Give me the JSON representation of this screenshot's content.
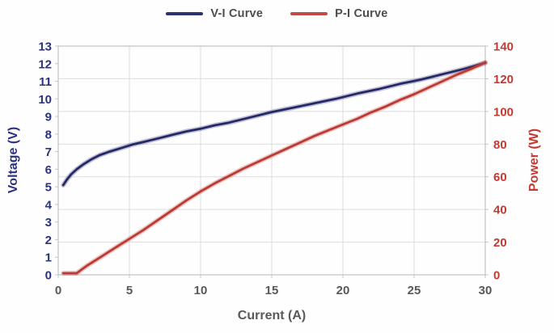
{
  "legend": {
    "items": [
      {
        "label": "V-I Curve",
        "color": "#2b3270"
      },
      {
        "label": "P-I Curve",
        "color": "#c24b45"
      }
    ]
  },
  "chart_data": {
    "type": "line",
    "title": "",
    "xlabel": "Current (A)",
    "ylabel_left": "Voltage (V)",
    "ylabel_right": "Power (W)",
    "xlim": [
      0,
      30
    ],
    "ylim_left": [
      0,
      13
    ],
    "ylim_right": [
      0,
      140
    ],
    "x_ticks": [
      0,
      5,
      10,
      15,
      20,
      25,
      30
    ],
    "y_left_ticks": [
      0,
      1,
      2,
      3,
      4,
      5,
      6,
      7,
      8,
      9,
      10,
      11,
      12,
      13
    ],
    "y_right_ticks": [
      0,
      20,
      40,
      60,
      80,
      100,
      120,
      140
    ],
    "grid": true,
    "legend_position": "top-center",
    "series": [
      {
        "name": "V-I Curve",
        "axis": "left",
        "color": "#232968",
        "x": [
          0.35,
          0.6,
          0.9,
          1.3,
          1.8,
          2.3,
          2.9,
          3.6,
          4.4,
          5.2,
          6,
          7,
          8,
          9,
          10,
          11,
          12,
          13.5,
          15,
          16.5,
          18,
          19.5,
          21,
          22.5,
          24,
          25.5,
          27,
          28.5,
          30
        ],
        "y": [
          5.1,
          5.4,
          5.7,
          6.0,
          6.3,
          6.55,
          6.8,
          7.0,
          7.2,
          7.4,
          7.55,
          7.75,
          7.95,
          8.15,
          8.3,
          8.5,
          8.65,
          8.95,
          9.25,
          9.5,
          9.75,
          10.0,
          10.3,
          10.55,
          10.85,
          11.1,
          11.4,
          11.7,
          12.05
        ]
      },
      {
        "name": "P-I Curve",
        "axis": "right",
        "color": "#bb3a33",
        "x": [
          0.35,
          1.3,
          2,
          3,
          4,
          5,
          6,
          7,
          8,
          9,
          10,
          11,
          12,
          13,
          14,
          15,
          16,
          17,
          18,
          19,
          20,
          21,
          22,
          23,
          24,
          25,
          26,
          27,
          28,
          29,
          30
        ],
        "y": [
          1,
          1,
          5.5,
          11,
          16.5,
          22,
          27.5,
          33.5,
          39.5,
          45.5,
          51,
          56,
          60.5,
          65,
          69,
          73,
          77,
          81,
          85,
          88.5,
          92,
          95.5,
          99.5,
          103,
          107,
          110.5,
          114.5,
          118.5,
          122.5,
          126,
          130
        ]
      }
    ],
    "colors": {
      "grid": "#dcdcdc",
      "frame": "#c6c6c6",
      "axis_tick": "#c6c6c6",
      "left_text": "#2b3280",
      "right_text": "#c23b32",
      "x_text": "#595959"
    }
  }
}
